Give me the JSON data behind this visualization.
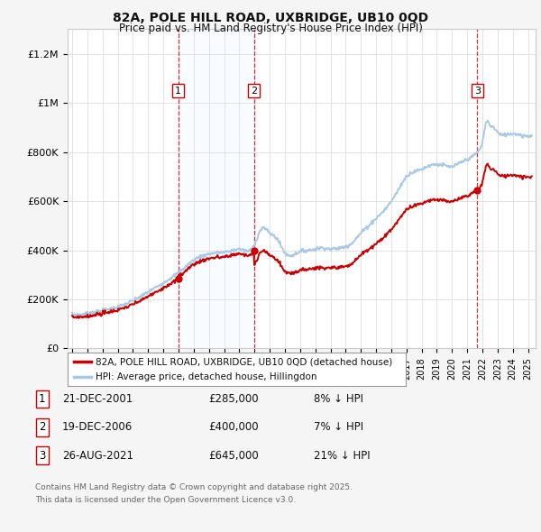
{
  "title_line1": "82A, POLE HILL ROAD, UXBRIDGE, UB10 0QD",
  "title_line2": "Price paid vs. HM Land Registry's House Price Index (HPI)",
  "ytick_values": [
    0,
    200000,
    400000,
    600000,
    800000,
    1000000,
    1200000
  ],
  "ylim": [
    0,
    1300000
  ],
  "xlim_start": 1994.7,
  "xlim_end": 2025.5,
  "hpi_color": "#a8c8e8",
  "price_color": "#cc0000",
  "vline_color": "#cc0000",
  "shade_color": "#ddeeff",
  "background_color": "#f5f5f5",
  "plot_bg_color": "#ffffff",
  "grid_color": "#d8d8d8",
  "sales": [
    {
      "num": 1,
      "year": 2001.97,
      "price": 285000,
      "label": "1",
      "date": "21-DEC-2001"
    },
    {
      "num": 2,
      "year": 2006.97,
      "price": 400000,
      "label": "2",
      "date": "19-DEC-2006"
    },
    {
      "num": 3,
      "year": 2021.66,
      "price": 645000,
      "label": "3",
      "date": "26-AUG-2021"
    }
  ],
  "legend_line1": "82A, POLE HILL ROAD, UXBRIDGE, UB10 0QD (detached house)",
  "legend_line2": "HPI: Average price, detached house, Hillingdon",
  "footer_line1": "Contains HM Land Registry data © Crown copyright and database right 2025.",
  "footer_line2": "This data is licensed under the Open Government Licence v3.0.",
  "table_rows": [
    {
      "num": "1",
      "date": "21-DEC-2001",
      "price": "£285,000",
      "pct": "8% ↓ HPI"
    },
    {
      "num": "2",
      "date": "19-DEC-2006",
      "price": "£400,000",
      "pct": "7% ↓ HPI"
    },
    {
      "num": "3",
      "date": "26-AUG-2021",
      "price": "£645,000",
      "pct": "21% ↓ HPI"
    }
  ]
}
